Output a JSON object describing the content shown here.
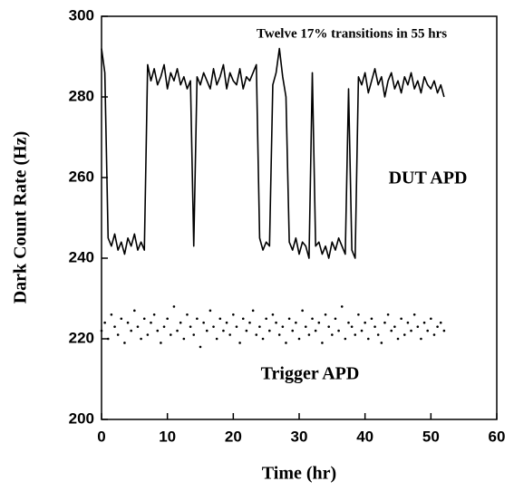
{
  "chart_data": {
    "type": "line",
    "xlabel": "Time (hr)",
    "ylabel": "Dark Count Rate (Hz)",
    "annotation": "Twelve 17% transitions in 55 hrs",
    "xlim": [
      0,
      60
    ],
    "xticks": [
      0,
      10,
      20,
      30,
      40,
      50,
      60
    ],
    "ylim": [
      200,
      300
    ],
    "yticks": [
      200,
      220,
      240,
      260,
      280,
      300
    ],
    "grid": false,
    "x": [
      0,
      0.5,
      1,
      1.5,
      2,
      2.5,
      3,
      3.5,
      4,
      4.5,
      5,
      5.5,
      6,
      6.5,
      7,
      7.5,
      8,
      8.5,
      9,
      9.5,
      10,
      10.5,
      11,
      11.5,
      12,
      12.5,
      13,
      13.5,
      14,
      14.5,
      15,
      15.5,
      16,
      16.5,
      17,
      17.5,
      18,
      18.5,
      19,
      19.5,
      20,
      20.5,
      21,
      21.5,
      22,
      22.5,
      23,
      23.5,
      24,
      24.5,
      25,
      25.5,
      26,
      26.5,
      27,
      27.5,
      28,
      28.5,
      29,
      29.5,
      30,
      30.5,
      31,
      31.5,
      32,
      32.5,
      33,
      33.5,
      34,
      34.5,
      35,
      35.5,
      36,
      36.5,
      37,
      37.5,
      38,
      38.5,
      39,
      39.5,
      40,
      40.5,
      41,
      41.5,
      42,
      42.5,
      43,
      43.5,
      44,
      44.5,
      45,
      45.5,
      46,
      46.5,
      47,
      47.5,
      48,
      48.5,
      49,
      49.5,
      50,
      50.5,
      51,
      51.5,
      52
    ],
    "series": [
      {
        "name": "DUT APD",
        "color": "#000000",
        "mode": "line",
        "values": [
          292,
          286,
          245,
          243,
          246,
          242,
          244,
          241,
          245,
          243,
          246,
          242,
          244,
          242,
          288,
          284,
          287,
          283,
          285,
          288,
          282,
          286,
          284,
          287,
          283,
          285,
          282,
          284,
          243,
          285,
          283,
          286,
          284,
          282,
          287,
          283,
          285,
          288,
          282,
          286,
          284,
          283,
          287,
          282,
          285,
          284,
          286,
          288,
          245,
          242,
          244,
          243,
          283,
          286,
          292,
          285,
          280,
          244,
          242,
          245,
          241,
          244,
          243,
          240,
          286,
          243,
          244,
          241,
          243,
          240,
          244,
          242,
          245,
          243,
          241,
          282,
          242,
          240,
          285,
          283,
          286,
          281,
          284,
          287,
          283,
          285,
          280,
          284,
          286,
          282,
          284,
          281,
          285,
          283,
          286,
          282,
          284,
          281,
          285,
          283,
          282,
          284,
          281,
          283,
          280
        ]
      },
      {
        "name": "Trigger APD",
        "color": "#000000",
        "mode": "markers",
        "values": [
          222,
          224,
          220,
          226,
          223,
          221,
          225,
          219,
          224,
          222,
          227,
          223,
          220,
          225,
          221,
          224,
          226,
          222,
          219,
          223,
          225,
          221,
          228,
          222,
          224,
          220,
          226,
          223,
          221,
          225,
          218,
          224,
          222,
          227,
          223,
          220,
          225,
          222,
          224,
          221,
          226,
          223,
          219,
          225,
          222,
          224,
          227,
          221,
          223,
          220,
          225,
          222,
          226,
          224,
          221,
          223,
          219,
          225,
          222,
          224,
          220,
          227,
          223,
          221,
          225,
          222,
          224,
          219,
          226,
          223,
          221,
          225,
          222,
          228,
          220,
          224,
          223,
          221,
          226,
          222,
          224,
          220,
          225,
          223,
          221,
          219,
          224,
          226,
          222,
          223,
          220,
          225,
          221,
          224,
          222,
          226,
          223,
          220,
          224,
          222,
          225,
          221,
          223,
          224,
          222
        ]
      }
    ]
  }
}
